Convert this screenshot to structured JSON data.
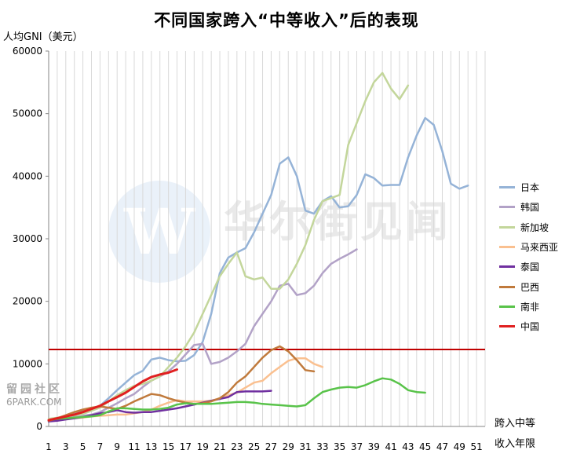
{
  "watermark": {
    "logo_letter": "W",
    "name": "华尔街见闻"
  },
  "site_mark": {
    "line1": "留园社区",
    "line2": "6PARK.COM"
  },
  "chart_data": {
    "type": "line",
    "title": "不同国家跨入“中等收入”后的表现",
    "ylabel": "人均GNI（美元）",
    "xlabel_line1": "跨入中等",
    "xlabel_line2": "收入年限",
    "ylim": [
      0,
      60000
    ],
    "xlim": [
      1,
      52
    ],
    "yticks": [
      0,
      10000,
      20000,
      30000,
      40000,
      50000,
      60000
    ],
    "xticks": [
      1,
      3,
      5,
      7,
      9,
      11,
      13,
      15,
      17,
      19,
      21,
      23,
      25,
      27,
      29,
      31,
      33,
      35,
      37,
      39,
      41,
      43,
      45,
      47,
      49,
      51
    ],
    "grid": "vertical lines only",
    "legend_position": "right",
    "reference_line": {
      "y": 12300,
      "color": "#c00000"
    },
    "series": [
      {
        "name": "日本",
        "color": "#95b3d7",
        "x_start": 1,
        "values": [
          1000,
          1200,
          1600,
          2000,
          2400,
          2700,
          3300,
          4500,
          5800,
          7000,
          8200,
          8900,
          10700,
          11000,
          10600,
          10400,
          10500,
          11400,
          13500,
          18000,
          24500,
          27000,
          27800,
          28500,
          31000,
          34000,
          37000,
          42000,
          43000,
          40000,
          34500,
          34000,
          36000,
          36800,
          35000,
          35200,
          37000,
          40300,
          39700,
          38500,
          38600,
          38600,
          43000,
          46500,
          49300,
          48200,
          44000,
          38800,
          38000,
          38500
        ]
      },
      {
        "name": "韩国",
        "color": "#b2a2c7",
        "x_start": 1,
        "values": [
          900,
          1000,
          1200,
          1500,
          1700,
          1900,
          2300,
          3000,
          3700,
          4500,
          5200,
          6300,
          7300,
          8000,
          8800,
          10000,
          11500,
          13000,
          13200,
          10000,
          10300,
          11000,
          12000,
          13200,
          16000,
          18000,
          20000,
          22500,
          22800,
          21000,
          21300,
          22500,
          24500,
          26000,
          26800,
          27500,
          28300
        ]
      },
      {
        "name": "新加坡",
        "color": "#c3d69b",
        "x_start": 1,
        "values": [
          1200,
          1400,
          1600,
          1800,
          2000,
          2500,
          3000,
          4000,
          5000,
          5800,
          6500,
          6800,
          7300,
          8000,
          9500,
          11000,
          12800,
          15000,
          18000,
          21000,
          24000,
          26000,
          27800,
          24000,
          23500,
          23800,
          22000,
          22000,
          23500,
          26000,
          29000,
          33000,
          36000,
          36500,
          37000,
          45000,
          48500,
          52000,
          55000,
          56500,
          54000,
          52300,
          54500
        ]
      },
      {
        "name": "马来西亚",
        "color": "#fac090",
        "x_start": 1,
        "values": [
          1000,
          1100,
          1200,
          1300,
          1400,
          1600,
          1700,
          1800,
          1900,
          1900,
          2100,
          2300,
          2700,
          3300,
          3800,
          4200,
          4000,
          4000,
          4000,
          4100,
          4500,
          5000,
          5400,
          6200,
          7000,
          7300,
          8500,
          9500,
          10500,
          10900,
          10900,
          10000,
          9500
        ]
      },
      {
        "name": "泰国",
        "color": "#7030a0",
        "x_start": 1,
        "values": [
          800,
          900,
          1100,
          1300,
          1500,
          1800,
          2100,
          2300,
          2600,
          2300,
          2200,
          2300,
          2300,
          2500,
          2700,
          2900,
          3200,
          3500,
          3800,
          4100,
          4400,
          4700,
          5500,
          5600,
          5600,
          5600,
          5700
        ]
      },
      {
        "name": "巴西",
        "color": "#c07a3c",
        "x_start": 1,
        "values": [
          900,
          1300,
          1800,
          2300,
          2700,
          3000,
          3200,
          3000,
          2800,
          3300,
          4000,
          4600,
          5200,
          5000,
          4500,
          4100,
          3800,
          3600,
          3700,
          4000,
          4500,
          5500,
          7000,
          8000,
          9500,
          11000,
          12200,
          12800,
          12000,
          10600,
          9000,
          8800
        ]
      },
      {
        "name": "南非",
        "color": "#59c34a",
        "x_start": 1,
        "values": [
          1000,
          1200,
          1300,
          1400,
          1500,
          1600,
          1800,
          2400,
          2900,
          2900,
          2800,
          2700,
          2700,
          2800,
          3000,
          3500,
          3700,
          3600,
          3600,
          3600,
          3700,
          3800,
          3900,
          3900,
          3800,
          3600,
          3500,
          3400,
          3300,
          3200,
          3400,
          4500,
          5500,
          5900,
          6200,
          6300,
          6200,
          6600,
          7200,
          7700,
          7500,
          6800,
          5800,
          5500,
          5400
        ]
      },
      {
        "name": "中国",
        "color": "#e02020",
        "x_start": 1,
        "values": [
          1000,
          1300,
          1600,
          1900,
          2300,
          2800,
          3300,
          4000,
          4700,
          5400,
          6300,
          7200,
          7900,
          8300,
          8600,
          9100
        ]
      }
    ]
  }
}
